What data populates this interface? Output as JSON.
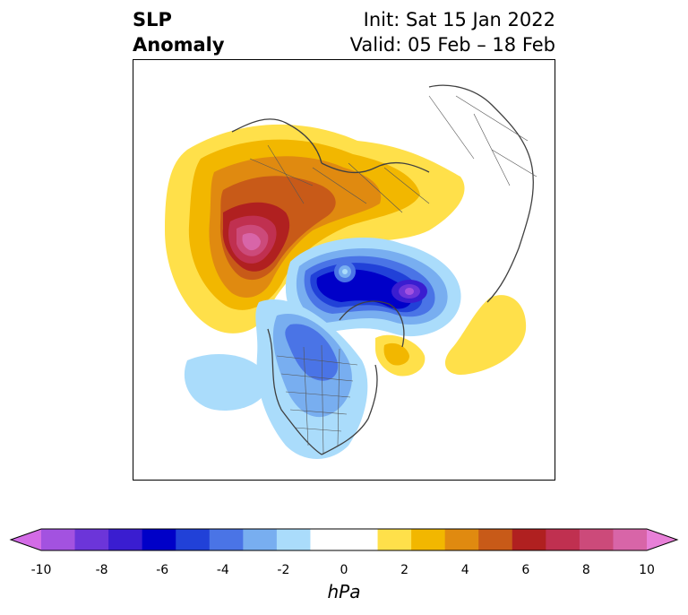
{
  "title": {
    "left_line1": "SLP",
    "left_line2": "Anomaly",
    "right_line1": "Init: Sat 15 Jan 2022",
    "right_line2": "Valid: 05 Feb – 18 Feb"
  },
  "colorbar": {
    "unit": "hPa",
    "ticks": [
      "-10",
      "-8",
      "-6",
      "-4",
      "-2",
      "0",
      "2",
      "4",
      "6",
      "8",
      "10"
    ],
    "levels": [
      -10,
      -9,
      -8,
      -7,
      -6,
      -5,
      -4,
      -3,
      -2,
      -1,
      1,
      2,
      3,
      4,
      5,
      6,
      7,
      8,
      9,
      10
    ],
    "colors": [
      "#d36be6",
      "#a352e0",
      "#6c35d9",
      "#3a1dd0",
      "#0000c8",
      "#2141d8",
      "#4a74e6",
      "#78aef0",
      "#aadcfb",
      "#ffffff",
      "#ffffff",
      "#ffe04a",
      "#f2b700",
      "#e08a10",
      "#c85a18",
      "#b02020",
      "#c03050",
      "#cc4a7a",
      "#d865a8",
      "#e880d8"
    ]
  },
  "map": {
    "anomalies": [
      {
        "name": "positive-anomaly-north-atlantic-europe",
        "sign": "positive",
        "max_hpa": 10
      },
      {
        "name": "negative-anomaly-arctic-siberia",
        "sign": "negative",
        "min_hpa": -10
      },
      {
        "name": "negative-anomaly-north-america",
        "sign": "negative",
        "min_hpa": -4
      },
      {
        "name": "positive-anomaly-north-pacific",
        "sign": "positive",
        "max_hpa": 2
      },
      {
        "name": "positive-anomaly-bering-alaska",
        "sign": "positive",
        "max_hpa": 3
      }
    ]
  }
}
